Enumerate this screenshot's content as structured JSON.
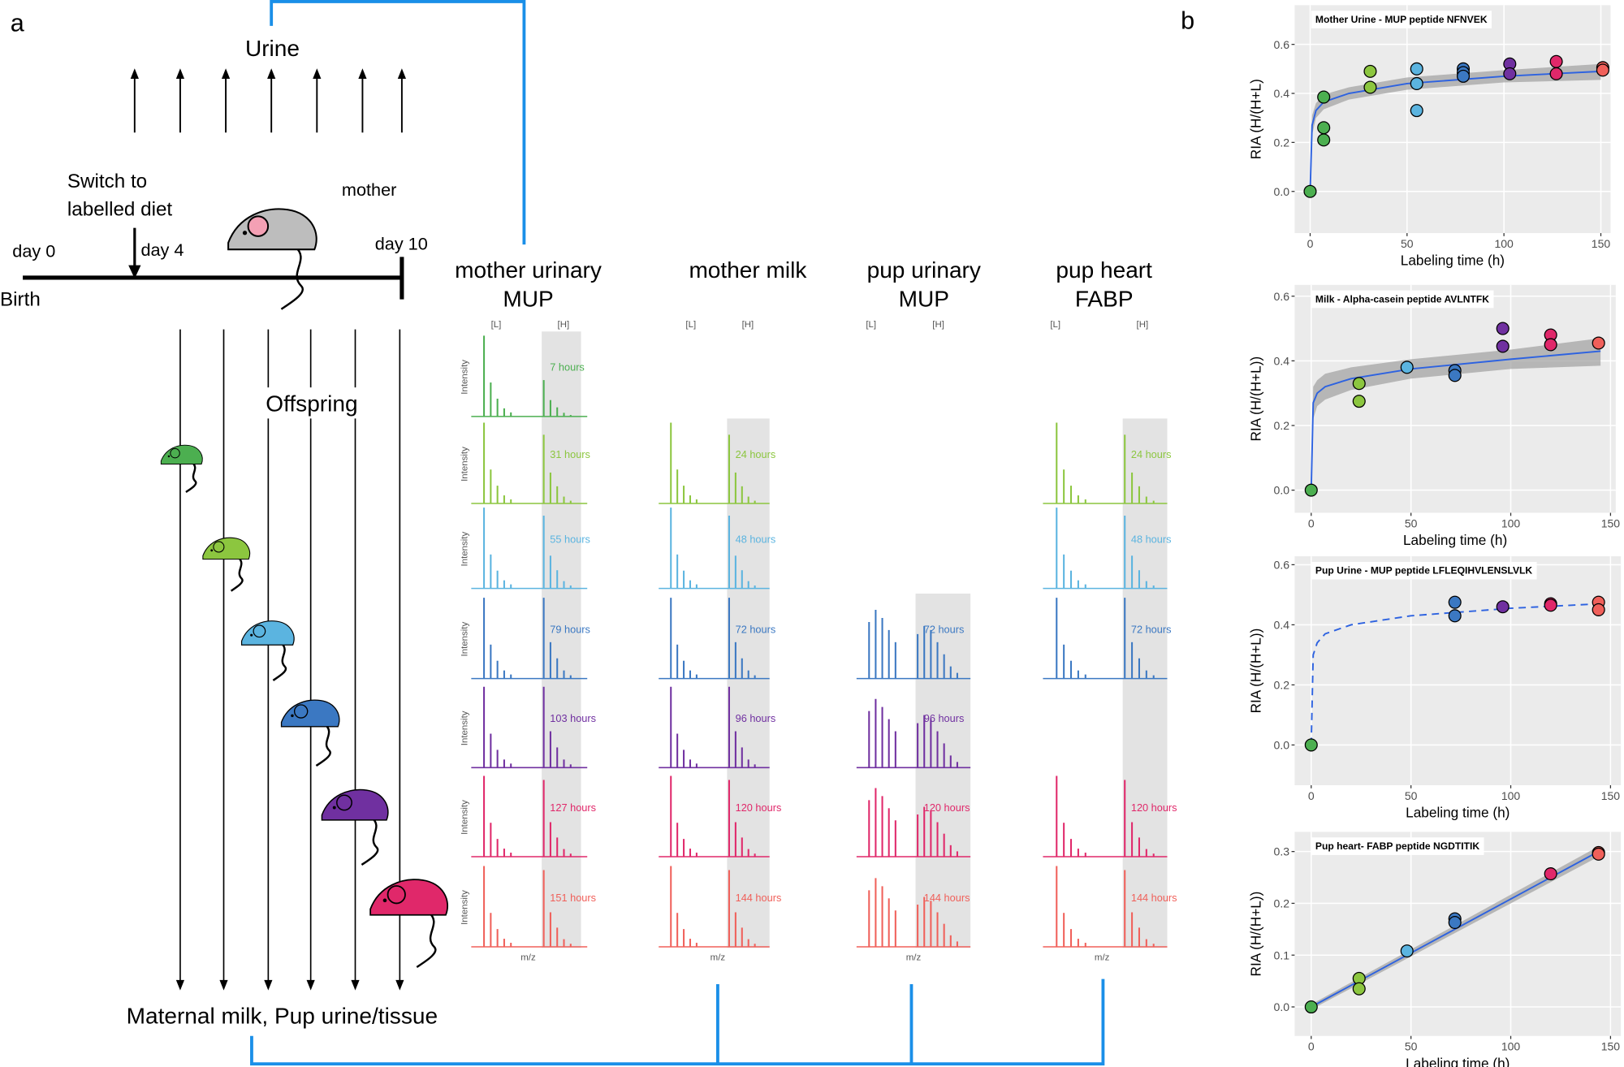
{
  "panel_labels": [
    "a",
    "b"
  ],
  "diagram": {
    "urine": "Urine",
    "switch_label": [
      "Switch to",
      "labelled diet"
    ],
    "mother": "mother",
    "day0": "day 0",
    "day4": "day 4",
    "day10": "day 10",
    "birth": "Birth",
    "offspring": "Offspring",
    "bottom": "Maternal milk, Pup urine/tissue"
  },
  "spectra": {
    "peak_labels": [
      "[L]",
      "[H]"
    ],
    "y_label": "Intensity",
    "x_label": "m/z",
    "row_colors": [
      "#4caf50",
      "#8cc63f",
      "#5bb4e0",
      "#3b78c2",
      "#7030a0",
      "#e0286a",
      "#f0605a"
    ],
    "columns": [
      {
        "title": [
          "mother urinary",
          "MUP"
        ],
        "times": [
          "7 hours",
          "31 hours",
          "55 hours",
          "79 hours",
          "103 hours",
          "127 hours",
          "151 hours"
        ]
      },
      {
        "title": [
          "mother milk"
        ],
        "times": [
          null,
          "24 hours",
          "48 hours",
          "72 hours",
          "96 hours",
          "120 hours",
          "144 hours"
        ]
      },
      {
        "title": [
          "pup urinary",
          "MUP"
        ],
        "times": [
          null,
          null,
          null,
          "72 hours",
          "96 hours",
          "120 hours",
          "144 hours"
        ]
      },
      {
        "title": [
          "pup heart",
          "FABP"
        ],
        "times": [
          null,
          "24 hours",
          "48 hours",
          "72 hours",
          null,
          "120 hours",
          "144 hours"
        ]
      }
    ]
  },
  "chart_data": [
    {
      "type": "scatter",
      "title": "Mother Urine - MUP peptide NFNVEK",
      "xlabel": "Labeling time (h)",
      "ylabel": "RIA (H/(H+L)",
      "x": [
        0,
        7,
        7,
        7,
        31,
        31,
        55,
        55,
        55,
        79,
        79,
        79,
        103,
        103,
        127,
        127,
        151,
        151
      ],
      "values": [
        0.0,
        0.385,
        0.26,
        0.21,
        0.49,
        0.425,
        0.5,
        0.44,
        0.33,
        0.5,
        0.485,
        0.47,
        0.52,
        0.48,
        0.53,
        0.48,
        0.505,
        0.495
      ],
      "colors": [
        "#4caf50",
        "#4caf50",
        "#4caf50",
        "#4caf50",
        "#8cc63f",
        "#8cc63f",
        "#5bb4e0",
        "#5bb4e0",
        "#5bb4e0",
        "#3b78c2",
        "#3b78c2",
        "#3b78c2",
        "#7030a0",
        "#7030a0",
        "#e0286a",
        "#e0286a",
        "#f0605a",
        "#f0605a"
      ],
      "xlim": [
        -8,
        155
      ],
      "ylim": [
        -0.17,
        0.76
      ],
      "xticks": [
        0,
        50,
        100,
        150
      ],
      "yticks": [
        {
          "value": 0,
          "label": "0.0"
        },
        {
          "value": 0.2,
          "label": "0.2"
        },
        {
          "value": 0.4,
          "label": "0.4"
        },
        {
          "value": 0.6,
          "label": "0.6"
        }
      ],
      "fit": {
        "x": [
          0,
          1,
          3,
          7,
          20,
          50,
          100,
          150
        ],
        "values": [
          0,
          0.27,
          0.33,
          0.365,
          0.4,
          0.44,
          0.47,
          0.49
        ],
        "lower": [
          0,
          0.23,
          0.3,
          0.335,
          0.375,
          0.415,
          0.445,
          0.455
        ],
        "upper": [
          0,
          0.31,
          0.36,
          0.395,
          0.425,
          0.465,
          0.495,
          0.52
        ],
        "dashed": false,
        "color": "#2d62e0"
      }
    },
    {
      "type": "scatter",
      "title": "Milk - Alpha-casein peptide AVLNTFK",
      "xlabel": "Labeling time (h)",
      "ylabel": "RIA (H/(H+L))",
      "x": [
        0,
        24,
        24,
        48,
        72,
        72,
        96,
        96,
        120,
        120,
        144
      ],
      "values": [
        0.0,
        0.33,
        0.275,
        0.38,
        0.37,
        0.355,
        0.5,
        0.445,
        0.48,
        0.45,
        0.455
      ],
      "colors": [
        "#4caf50",
        "#8cc63f",
        "#8cc63f",
        "#5bb4e0",
        "#3b78c2",
        "#3b78c2",
        "#7030a0",
        "#7030a0",
        "#e0286a",
        "#e0286a",
        "#f0605a"
      ],
      "xlim": [
        -8.3,
        152.6
      ],
      "ylim": [
        -0.07,
        0.635
      ],
      "xticks": [
        0,
        50,
        100,
        150
      ],
      "yticks": [
        {
          "value": 0,
          "label": "0.0"
        },
        {
          "value": 0.2,
          "label": "0.2"
        },
        {
          "value": 0.4,
          "label": "0.4"
        },
        {
          "value": 0.6,
          "label": "0.6"
        }
      ],
      "fit": {
        "x": [
          0,
          1,
          3,
          7,
          20,
          50,
          100,
          145
        ],
        "values": [
          0,
          0.27,
          0.3,
          0.32,
          0.345,
          0.375,
          0.405,
          0.43
        ],
        "lower": [
          0,
          0.22,
          0.26,
          0.28,
          0.31,
          0.345,
          0.375,
          0.385
        ],
        "upper": [
          0,
          0.32,
          0.34,
          0.36,
          0.38,
          0.405,
          0.435,
          0.47
        ],
        "dashed": false,
        "color": "#2d62e0"
      }
    },
    {
      "type": "scatter",
      "title": "Pup Urine - MUP peptide LFLEQIHVLENSLVLK",
      "xlabel": "Labeling time (h)",
      "ylabel": "RIA (H/(H+L))",
      "x": [
        0,
        72,
        72,
        96,
        120,
        120,
        144,
        144
      ],
      "values": [
        0.0,
        0.475,
        0.43,
        0.46,
        0.47,
        0.465,
        0.475,
        0.45
      ],
      "colors": [
        "#4caf50",
        "#3b78c2",
        "#3b78c2",
        "#7030a0",
        "#e0286a",
        "#e0286a",
        "#f0605a",
        "#f0605a"
      ],
      "xlim": [
        -8.3,
        155.2
      ],
      "ylim": [
        -0.134,
        0.628
      ],
      "xticks": [
        0,
        50,
        100,
        150
      ],
      "yticks": [
        {
          "value": 0,
          "label": "0.0"
        },
        {
          "value": 0.2,
          "label": "0.2"
        },
        {
          "value": 0.4,
          "label": "0.4"
        },
        {
          "value": 0.6,
          "label": "0.6"
        }
      ],
      "fit": {
        "x": [
          0,
          1,
          3,
          7,
          20,
          50,
          100,
          145
        ],
        "values": [
          0,
          0.3,
          0.34,
          0.37,
          0.4,
          0.43,
          0.455,
          0.47
        ],
        "dashed": true,
        "color": "#2d62e0"
      }
    },
    {
      "type": "scatter",
      "title": "Pup heart- FABP peptide NGDTITIK",
      "xlabel": "Labeling time (h)",
      "ylabel": "RIA (H/(H+L))",
      "x": [
        0,
        24,
        24,
        48,
        72,
        72,
        120,
        144,
        144
      ],
      "values": [
        0.0,
        0.055,
        0.035,
        0.108,
        0.17,
        0.163,
        0.257,
        0.298,
        0.295
      ],
      "colors": [
        "#4caf50",
        "#8cc63f",
        "#8cc63f",
        "#5bb4e0",
        "#3b78c2",
        "#3b78c2",
        "#e0286a",
        "#f0605a",
        "#f0605a"
      ],
      "xlim": [
        -8.3,
        155.2
      ],
      "ylim": [
        -0.056,
        0.338
      ],
      "xticks": [
        0,
        50,
        100,
        150
      ],
      "yticks": [
        {
          "value": 0,
          "label": "0.0"
        },
        {
          "value": 0.1,
          "label": "0.1"
        },
        {
          "value": 0.2,
          "label": "0.2"
        },
        {
          "value": 0.3,
          "label": "0.3"
        }
      ],
      "fit": {
        "x": [
          0,
          144
        ],
        "values": [
          0,
          0.3
        ],
        "lower": [
          -0.005,
          0.29
        ],
        "upper": [
          0.005,
          0.31
        ],
        "dashed": false,
        "color": "#2d62e0"
      }
    }
  ]
}
